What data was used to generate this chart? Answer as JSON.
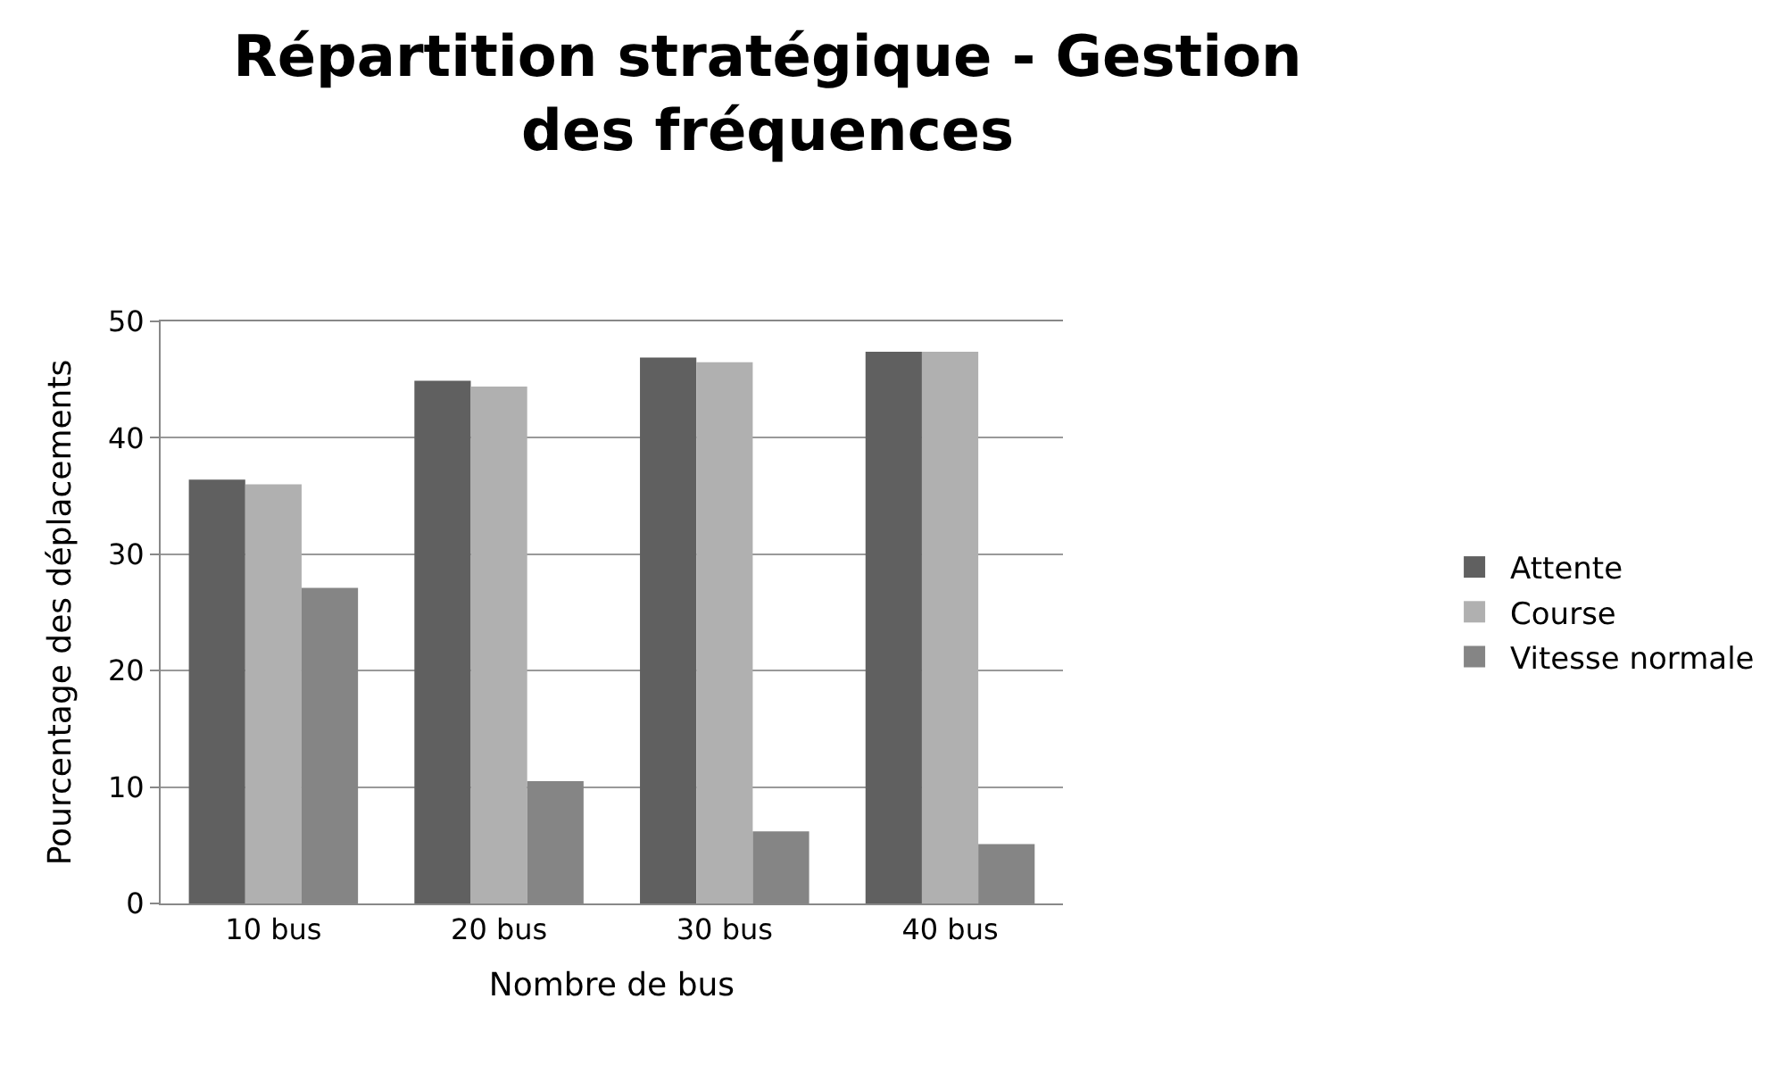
{
  "chart_data": {
    "type": "bar",
    "title": "Répartition stratégique - Gestion des fréquences",
    "xlabel": "Nombre de bus",
    "ylabel": "Pourcentage des déplacements",
    "categories": [
      "10 bus",
      "20 bus",
      "30 bus",
      "40 bus"
    ],
    "series": [
      {
        "name": "Attente",
        "color": "#606060",
        "values": [
          36.4,
          44.9,
          46.9,
          47.4
        ]
      },
      {
        "name": "Course",
        "color": "#b0b0b0",
        "values": [
          36.0,
          44.4,
          46.5,
          47.4
        ]
      },
      {
        "name": "Vitesse normale",
        "color": "#858585",
        "values": [
          27.1,
          10.5,
          6.2,
          5.1
        ]
      }
    ],
    "ylim": [
      0,
      50
    ],
    "yticks": [
      0,
      10,
      20,
      30,
      40,
      50
    ],
    "grid": "y",
    "legend": "right"
  }
}
